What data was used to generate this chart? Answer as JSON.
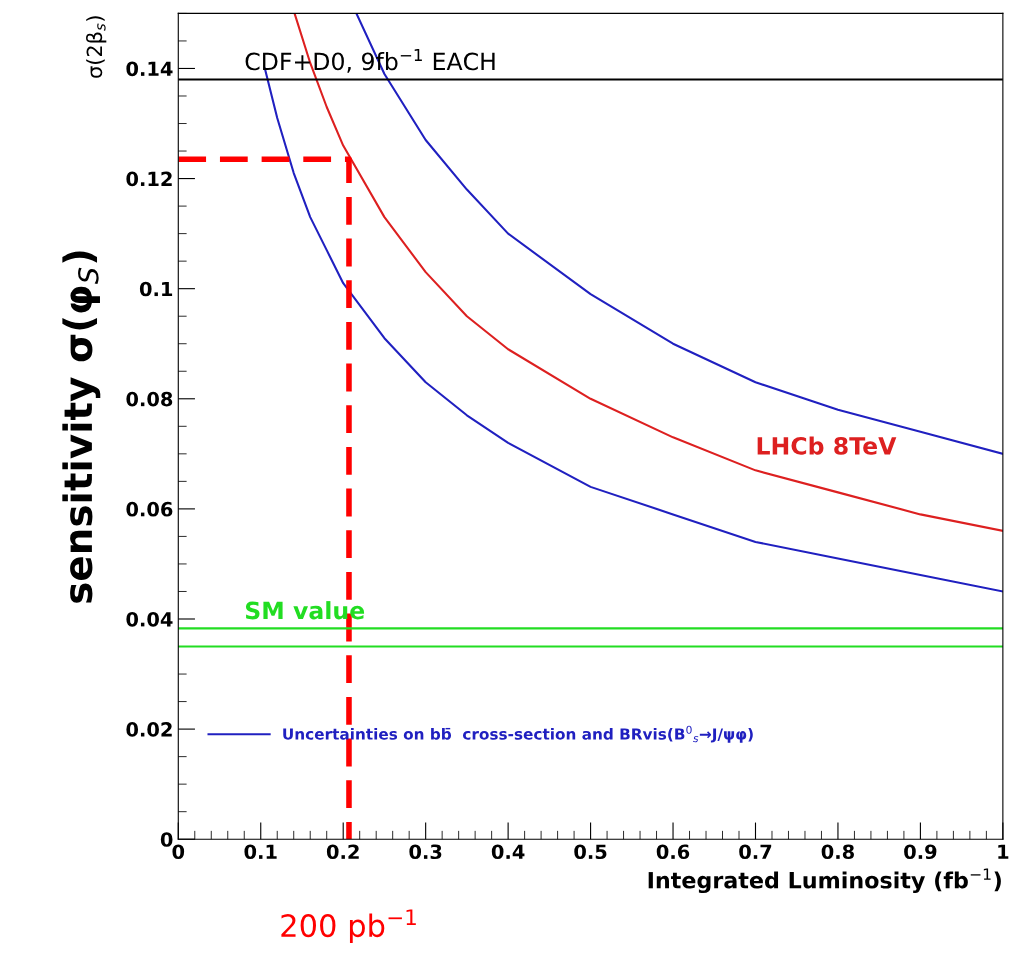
{
  "chart_data": {
    "type": "line",
    "xlabel": "Integrated Luminosity (fb$^{−1}$)",
    "ylabel": "sensitivity σ(φ$_{S}$)",
    "xlim": [
      0,
      1
    ],
    "ylim": [
      0,
      0.15
    ],
    "xticks": [
      0,
      0.1,
      0.2,
      0.3,
      0.4,
      0.5,
      0.6,
      0.7,
      0.8,
      0.9,
      1
    ],
    "yticks": [
      0,
      0.02,
      0.04,
      0.06,
      0.08,
      0.1,
      0.12,
      0.14
    ],
    "grid": false,
    "legend": "bottom left",
    "marker": "none",
    "line_style": "solid",
    "series": [
      {
        "name": "Uncertainties on bb̄  cross-section and BRvis(B$^{0}$$_{s}$→J/ψφ)",
        "color": "#2020c0",
        "x": [
          0.105,
          0.12,
          0.14,
          0.16,
          0.18,
          0.2,
          0.25,
          0.3,
          0.35,
          0.4,
          0.5,
          0.6,
          0.7,
          0.8,
          0.9,
          1
        ],
        "values": [
          0.14,
          0.131,
          0.121,
          0.113,
          0.107,
          0.101,
          0.091,
          0.083,
          0.077,
          0.072,
          0.064,
          0.059,
          0.054,
          0.051,
          0.048,
          0.045
        ]
      },
      {
        "name": "LHCb 8TeV",
        "color": "#dd2020",
        "x": [
          0.141,
          0.16,
          0.18,
          0.2,
          0.25,
          0.3,
          0.35,
          0.4,
          0.5,
          0.6,
          0.7,
          0.8,
          0.9,
          1
        ],
        "values": [
          0.15,
          0.141,
          0.133,
          0.126,
          0.113,
          0.103,
          0.095,
          0.089,
          0.08,
          0.073,
          0.067,
          0.063,
          0.059,
          0.056
        ]
      },
      {
        "color": "#2020c0",
        "x": [
          0.216,
          0.25,
          0.3,
          0.35,
          0.4,
          0.5,
          0.6,
          0.7,
          0.8,
          0.9,
          1
        ],
        "values": [
          0.15,
          0.139,
          0.127,
          0.118,
          0.11,
          0.099,
          0.09,
          0.083,
          0.078,
          0.074,
          0.07
        ]
      },
      {
        "color": "#ff0000",
        "line_style": "dashed",
        "x": [
          0,
          0.207,
          0.207
        ],
        "values": [
          0.1235,
          0.1235,
          0
        ]
      }
    ],
    "ref_lines": [
      {
        "axis": "y",
        "value": 0.138,
        "label": "CDF+D0, 9fb$^{−1}$ EACH",
        "color": "#000000"
      },
      {
        "axis": "y",
        "value": 0.0383,
        "label": "SM value",
        "color": "#22dd22"
      },
      {
        "axis": "y",
        "value": 0.035,
        "color": "#22dd22"
      }
    ],
    "annotations": [
      "200 pb$^{−1}$",
      "σ(2β$_{s}$)"
    ]
  }
}
